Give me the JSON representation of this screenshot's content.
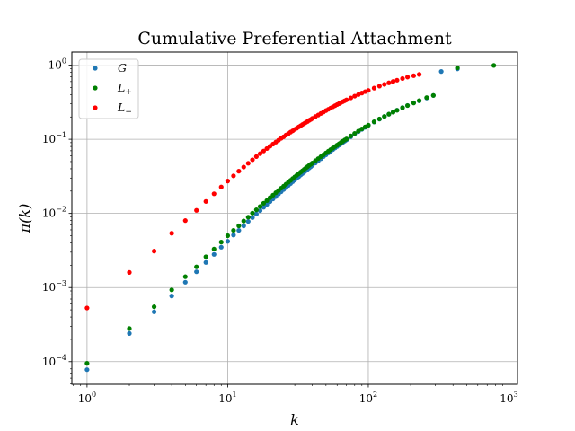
{
  "chart_data": {
    "type": "scatter",
    "title": "Cumulative Preferential Attachment",
    "xlabel": "k",
    "ylabel": "π(k)",
    "xscale": "log",
    "yscale": "log",
    "xlim": [
      0.78,
      1150
    ],
    "ylim": [
      4.95e-05,
      1.5
    ],
    "grid": true,
    "legend_position": "top-left",
    "x_ticks": [
      {
        "value": 1,
        "base": "10",
        "exp": "0"
      },
      {
        "value": 10,
        "base": "10",
        "exp": "1"
      },
      {
        "value": 100,
        "base": "10",
        "exp": "2"
      },
      {
        "value": 1000,
        "base": "10",
        "exp": "3"
      }
    ],
    "y_ticks": [
      {
        "value": 0.0001,
        "base": "10",
        "exp": "−4"
      },
      {
        "value": 0.001,
        "base": "10",
        "exp": "−3"
      },
      {
        "value": 0.01,
        "base": "10",
        "exp": "−2"
      },
      {
        "value": 0.1,
        "base": "10",
        "exp": "−1"
      },
      {
        "value": 1,
        "base": "10",
        "exp": "0"
      }
    ],
    "series": [
      {
        "name": "G",
        "legend_base": "G",
        "legend_sub": "",
        "color": "#1f77b4",
        "points": [
          [
            1,
            7.8e-05
          ],
          [
            2,
            0.00024
          ],
          [
            3,
            0.00047
          ],
          [
            4,
            0.00077
          ],
          [
            5,
            0.00118
          ],
          [
            6,
            0.00163
          ],
          [
            7,
            0.00218
          ],
          [
            8,
            0.0028
          ],
          [
            9,
            0.0035
          ],
          [
            10,
            0.0042
          ],
          [
            11,
            0.0051
          ],
          [
            12,
            0.0059
          ],
          [
            13,
            0.0068
          ],
          [
            14,
            0.0078
          ],
          [
            15,
            0.0088
          ],
          [
            16,
            0.0098
          ],
          [
            17,
            0.0109
          ],
          [
            18,
            0.0121
          ],
          [
            19,
            0.0132
          ],
          [
            20,
            0.0144
          ],
          [
            21,
            0.0157
          ],
          [
            22,
            0.0169
          ],
          [
            23,
            0.0183
          ],
          [
            24,
            0.0196
          ],
          [
            25,
            0.021
          ],
          [
            26,
            0.0224
          ],
          [
            27,
            0.0238
          ],
          [
            28,
            0.0253
          ],
          [
            29,
            0.0268
          ],
          [
            30,
            0.0283
          ],
          [
            31,
            0.0298
          ],
          [
            32,
            0.0313
          ],
          [
            33,
            0.0329
          ],
          [
            34,
            0.0345
          ],
          [
            35,
            0.0361
          ],
          [
            36,
            0.0377
          ],
          [
            37,
            0.0394
          ],
          [
            38,
            0.041
          ],
          [
            39,
            0.0427
          ],
          [
            40,
            0.0444
          ],
          [
            42,
            0.0478
          ],
          [
            44,
            0.0512
          ],
          [
            46,
            0.0547
          ],
          [
            48,
            0.0583
          ],
          [
            50,
            0.0618
          ],
          [
            52,
            0.0655
          ],
          [
            54,
            0.0691
          ],
          [
            56,
            0.0727
          ],
          [
            58,
            0.0763
          ],
          [
            60,
            0.08
          ],
          [
            62,
            0.0836
          ],
          [
            64,
            0.0872
          ],
          [
            66,
            0.0908
          ],
          [
            68,
            0.0944
          ],
          [
            70,
            0.098
          ],
          [
            75,
            0.108
          ],
          [
            80,
            0.118
          ],
          [
            85,
            0.127
          ],
          [
            90,
            0.136
          ],
          [
            95,
            0.145
          ],
          [
            100,
            0.154
          ],
          [
            110,
            0.171
          ],
          [
            120,
            0.187
          ],
          [
            130,
            0.203
          ],
          [
            140,
            0.218
          ],
          [
            150,
            0.233
          ],
          [
            160,
            0.247
          ],
          [
            175,
            0.267
          ],
          [
            190,
            0.286
          ],
          [
            210,
            0.31
          ],
          [
            230,
            0.33
          ],
          [
            260,
            0.36
          ],
          [
            290,
            0.39
          ],
          [
            330,
            0.82
          ],
          [
            430,
            0.89
          ]
        ]
      },
      {
        "name": "L+",
        "legend_base": "L",
        "legend_sub": "+",
        "color": "#008000",
        "points": [
          [
            1,
            9.5e-05
          ],
          [
            2,
            0.00028
          ],
          [
            3,
            0.00055
          ],
          [
            4,
            0.00093
          ],
          [
            5,
            0.0014
          ],
          [
            6,
            0.0019
          ],
          [
            7,
            0.0026
          ],
          [
            8,
            0.0033
          ],
          [
            9,
            0.0041
          ],
          [
            10,
            0.005
          ],
          [
            11,
            0.0059
          ],
          [
            12,
            0.0068
          ],
          [
            13,
            0.0079
          ],
          [
            14,
            0.0089
          ],
          [
            15,
            0.0101
          ],
          [
            16,
            0.0112
          ],
          [
            17,
            0.0124
          ],
          [
            18,
            0.0137
          ],
          [
            19,
            0.0149
          ],
          [
            20,
            0.0163
          ],
          [
            21,
            0.0176
          ],
          [
            22,
            0.019
          ],
          [
            23,
            0.0204
          ],
          [
            24,
            0.0219
          ],
          [
            25,
            0.0233
          ],
          [
            26,
            0.0248
          ],
          [
            27,
            0.0264
          ],
          [
            28,
            0.0279
          ],
          [
            29,
            0.0295
          ],
          [
            30,
            0.0311
          ],
          [
            31,
            0.0327
          ],
          [
            32,
            0.0343
          ],
          [
            33,
            0.036
          ],
          [
            34,
            0.0376
          ],
          [
            35,
            0.0393
          ],
          [
            36,
            0.041
          ],
          [
            37,
            0.0427
          ],
          [
            38,
            0.0444
          ],
          [
            39,
            0.0461
          ],
          [
            40,
            0.0478
          ],
          [
            42,
            0.0513
          ],
          [
            44,
            0.0548
          ],
          [
            46,
            0.0583
          ],
          [
            48,
            0.0618
          ],
          [
            50,
            0.0654
          ],
          [
            52,
            0.069
          ],
          [
            54,
            0.0726
          ],
          [
            56,
            0.0762
          ],
          [
            58,
            0.0798
          ],
          [
            60,
            0.0834
          ],
          [
            62,
            0.087
          ],
          [
            64,
            0.0906
          ],
          [
            66,
            0.0942
          ],
          [
            68,
            0.0978
          ],
          [
            70,
            0.101
          ],
          [
            75,
            0.111
          ],
          [
            80,
            0.12
          ],
          [
            85,
            0.129
          ],
          [
            90,
            0.138
          ],
          [
            95,
            0.147
          ],
          [
            100,
            0.155
          ],
          [
            110,
            0.172
          ],
          [
            120,
            0.188
          ],
          [
            130,
            0.203
          ],
          [
            140,
            0.218
          ],
          [
            150,
            0.232
          ],
          [
            160,
            0.246
          ],
          [
            175,
            0.266
          ],
          [
            190,
            0.285
          ],
          [
            210,
            0.309
          ],
          [
            230,
            0.332
          ],
          [
            260,
            0.365
          ],
          [
            290,
            0.39
          ],
          [
            430,
            0.92
          ],
          [
            780,
            0.99
          ]
        ]
      },
      {
        "name": "L−",
        "legend_base": "L",
        "legend_sub": "−",
        "color": "#ff0000",
        "points": [
          [
            1,
            0.00053
          ],
          [
            2,
            0.0016
          ],
          [
            3,
            0.0031
          ],
          [
            4,
            0.0054
          ],
          [
            5,
            0.008
          ],
          [
            6,
            0.011
          ],
          [
            7,
            0.0145
          ],
          [
            8,
            0.0184
          ],
          [
            9,
            0.0227
          ],
          [
            10,
            0.0273
          ],
          [
            11,
            0.0321
          ],
          [
            12,
            0.0371
          ],
          [
            13,
            0.0422
          ],
          [
            14,
            0.0475
          ],
          [
            15,
            0.0529
          ],
          [
            16,
            0.0584
          ],
          [
            17,
            0.0639
          ],
          [
            18,
            0.0694
          ],
          [
            19,
            0.075
          ],
          [
            20,
            0.0806
          ],
          [
            21,
            0.086
          ],
          [
            22,
            0.0916
          ],
          [
            23,
            0.0972
          ],
          [
            24,
            0.103
          ],
          [
            25,
            0.108
          ],
          [
            26,
            0.114
          ],
          [
            27,
            0.119
          ],
          [
            28,
            0.125
          ],
          [
            29,
            0.13
          ],
          [
            30,
            0.136
          ],
          [
            31,
            0.141
          ],
          [
            32,
            0.147
          ],
          [
            33,
            0.152
          ],
          [
            34,
            0.158
          ],
          [
            35,
            0.163
          ],
          [
            36,
            0.169
          ],
          [
            37,
            0.174
          ],
          [
            38,
            0.18
          ],
          [
            39,
            0.185
          ],
          [
            40,
            0.191
          ],
          [
            42,
            0.202
          ],
          [
            44,
            0.212
          ],
          [
            46,
            0.223
          ],
          [
            48,
            0.233
          ],
          [
            50,
            0.244
          ],
          [
            52,
            0.254
          ],
          [
            54,
            0.264
          ],
          [
            56,
            0.274
          ],
          [
            58,
            0.284
          ],
          [
            60,
            0.294
          ],
          [
            62,
            0.303
          ],
          [
            64,
            0.313
          ],
          [
            66,
            0.322
          ],
          [
            68,
            0.331
          ],
          [
            70,
            0.34
          ],
          [
            75,
            0.361
          ],
          [
            80,
            0.382
          ],
          [
            85,
            0.401
          ],
          [
            90,
            0.42
          ],
          [
            95,
            0.439
          ],
          [
            100,
            0.456
          ],
          [
            110,
            0.49
          ],
          [
            120,
            0.521
          ],
          [
            130,
            0.55
          ],
          [
            140,
            0.577
          ],
          [
            150,
            0.602
          ],
          [
            160,
            0.626
          ],
          [
            175,
            0.66
          ],
          [
            190,
            0.69
          ],
          [
            210,
            0.72
          ],
          [
            230,
            0.75
          ]
        ]
      }
    ]
  }
}
